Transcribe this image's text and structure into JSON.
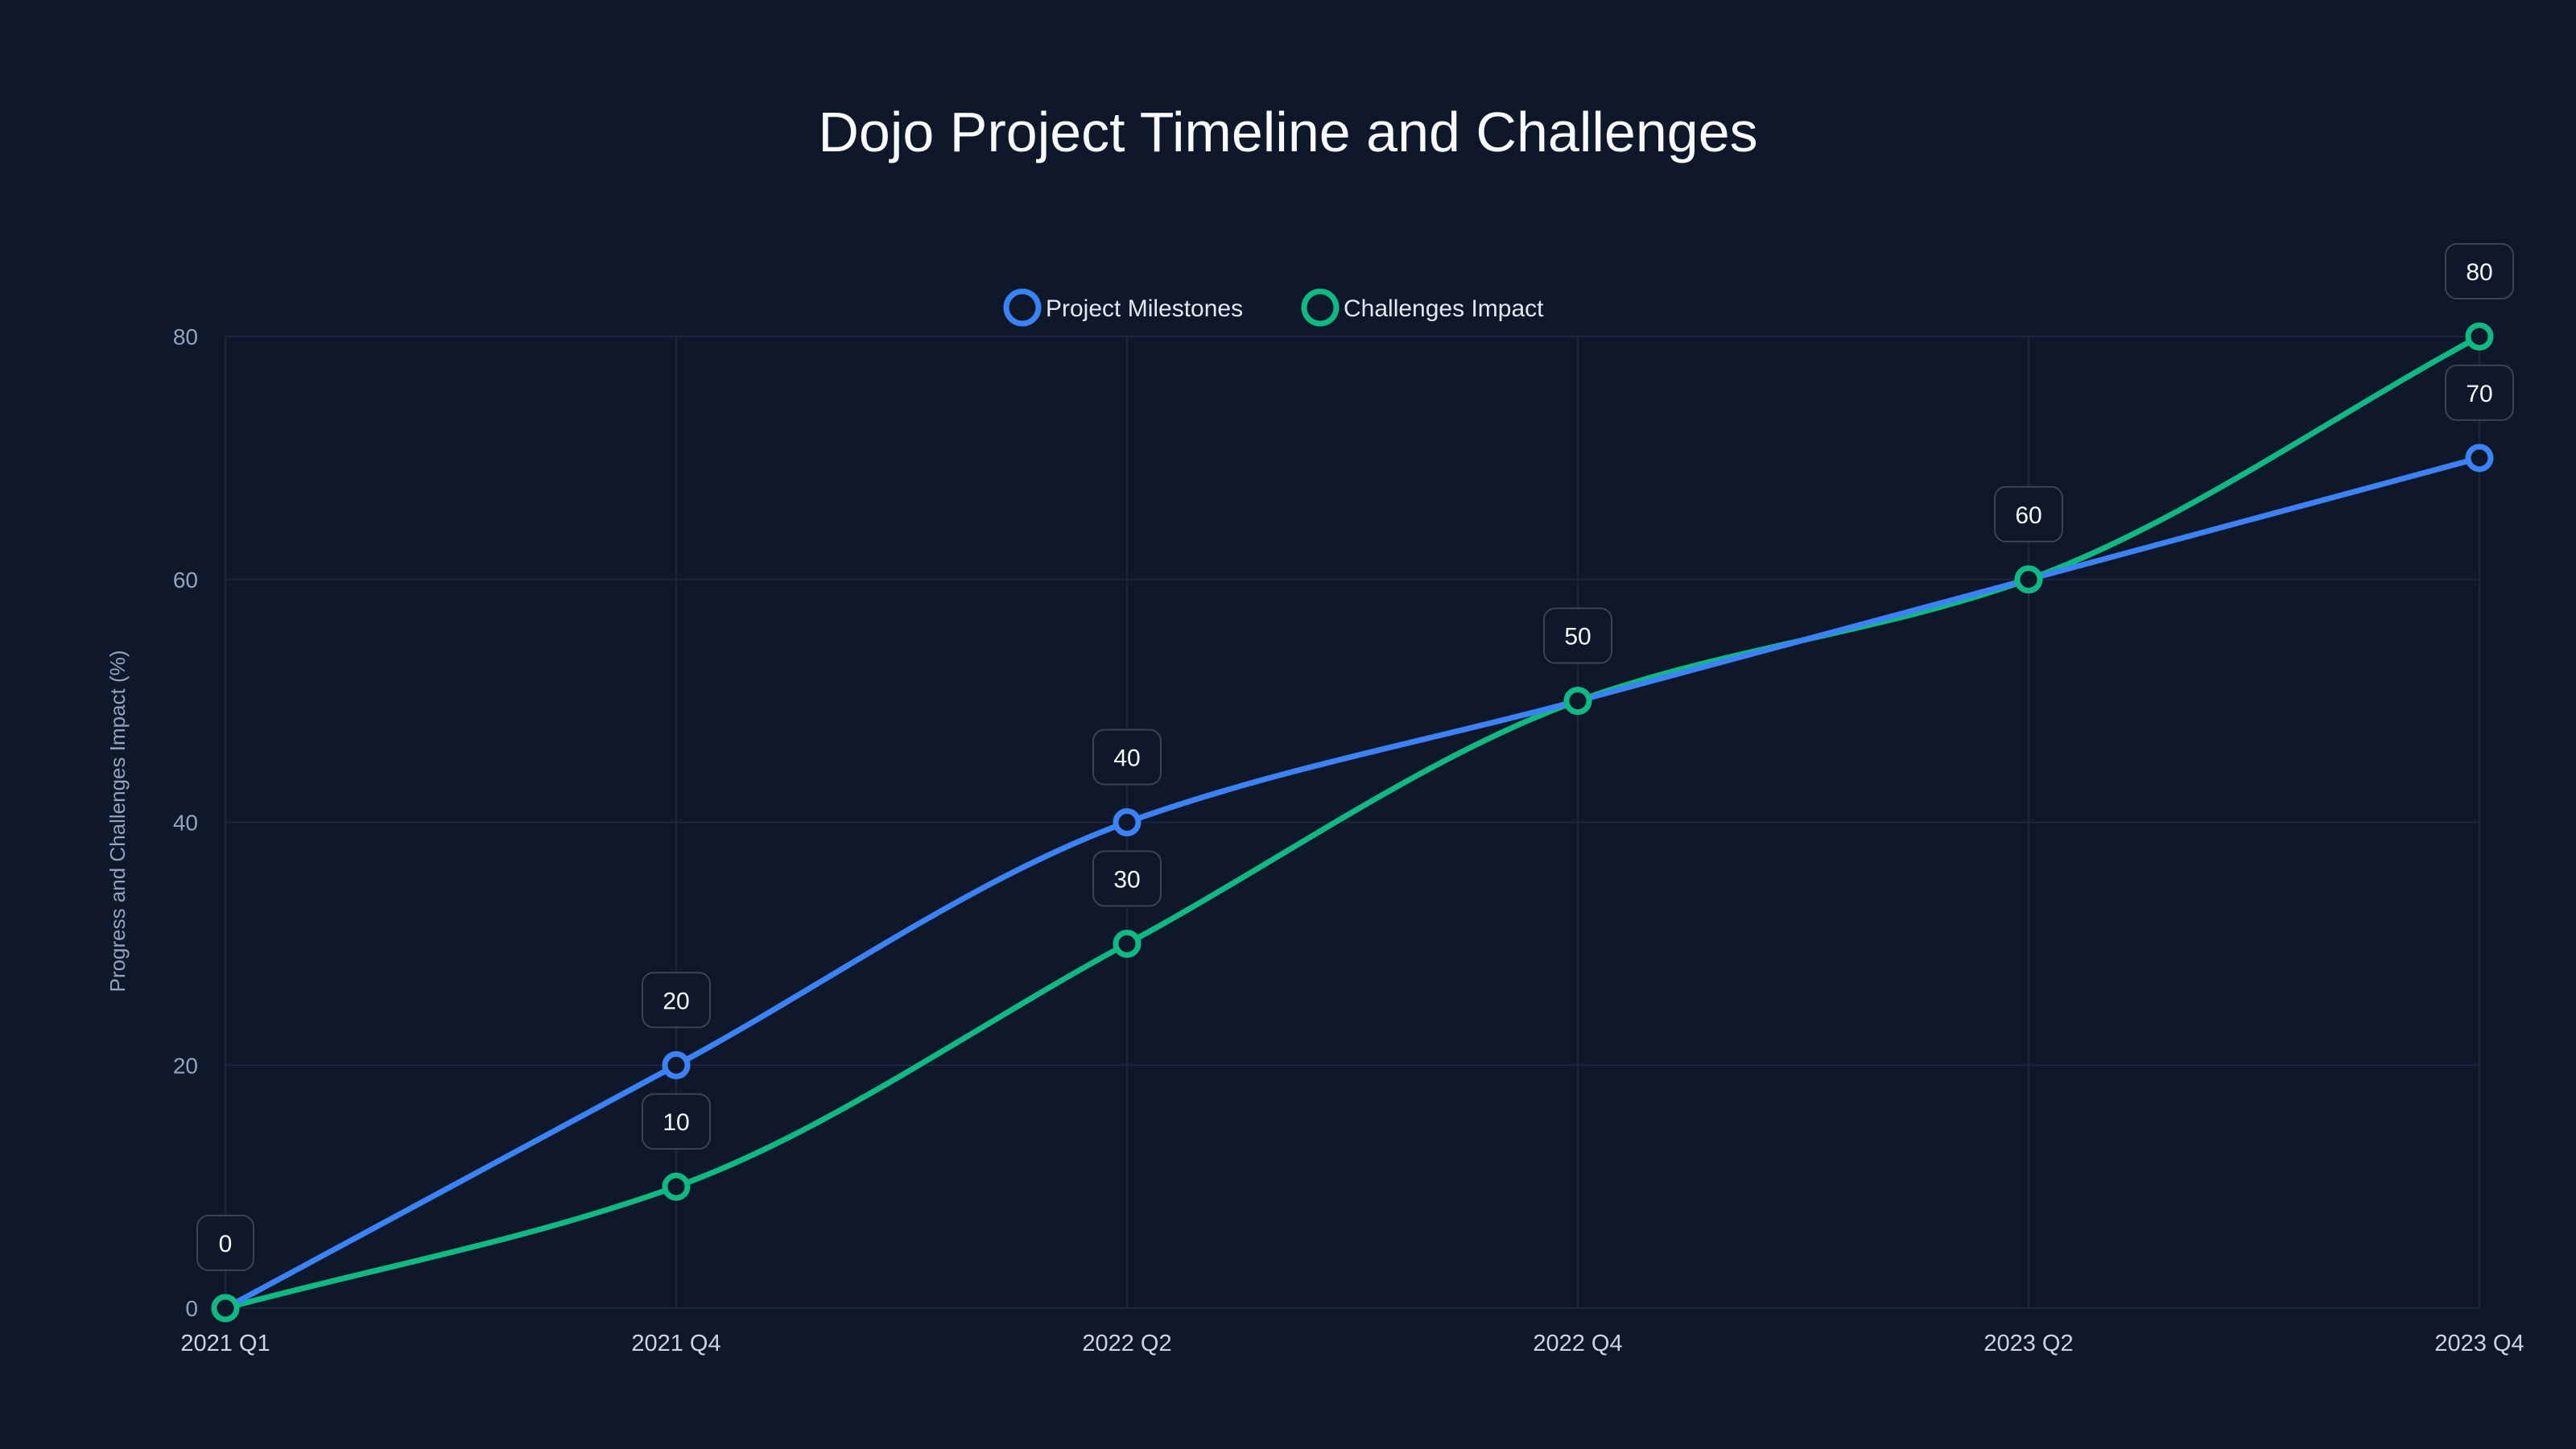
{
  "chart_data": {
    "type": "line",
    "title": "Dojo Project Timeline and Challenges",
    "xlabel": "",
    "ylabel": "Progress and Challenges Impact (%)",
    "categories": [
      "2021 Q1",
      "2021 Q4",
      "2022 Q2",
      "2022 Q4",
      "2023 Q2",
      "2023 Q4"
    ],
    "ylim": [
      0,
      80
    ],
    "yticks": [
      "0",
      "20",
      "40",
      "60",
      "80"
    ],
    "grid": true,
    "legend_position": "top-center",
    "series": [
      {
        "name": "Project Milestones",
        "color": "#3b82f6",
        "values": [
          0,
          20,
          40,
          50,
          60,
          70
        ]
      },
      {
        "name": "Challenges Impact",
        "color": "#10b981",
        "values": [
          0,
          10,
          30,
          50,
          60,
          80
        ]
      }
    ]
  }
}
